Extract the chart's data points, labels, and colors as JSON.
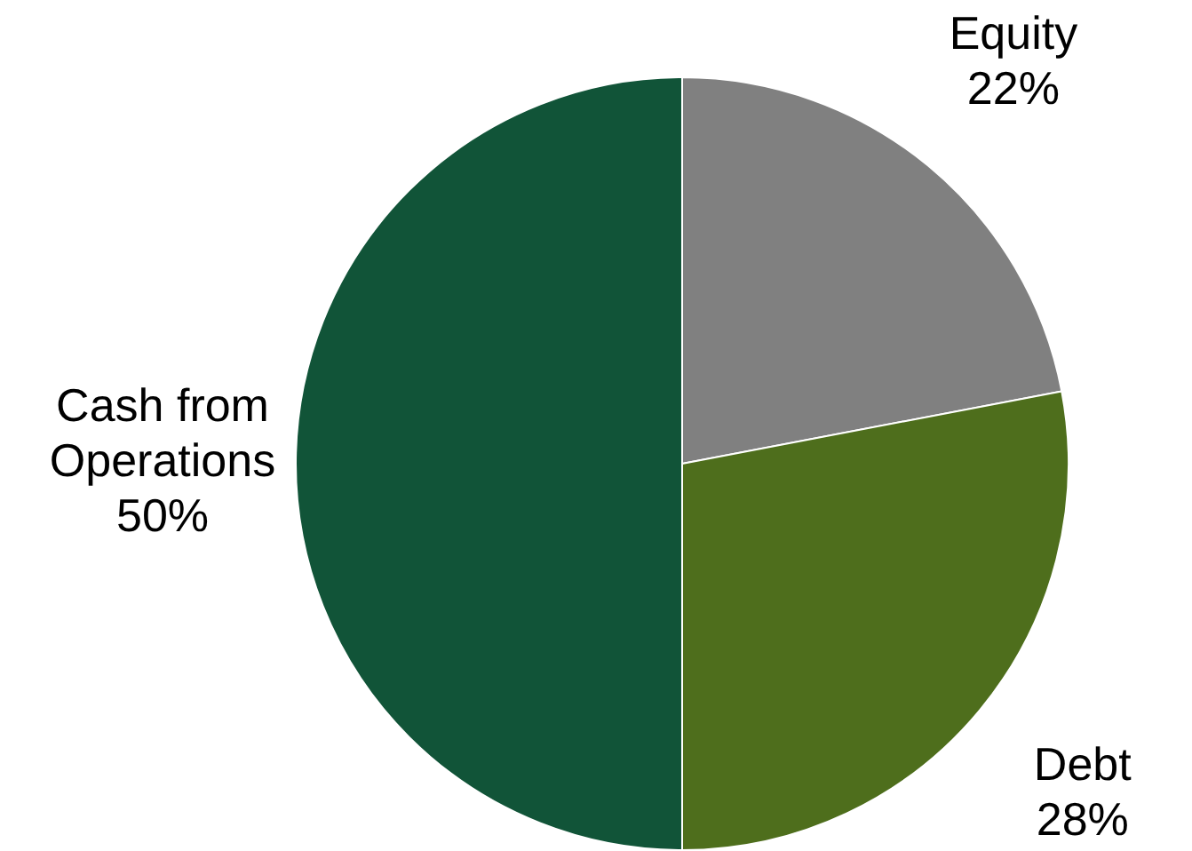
{
  "chart_data": {
    "type": "pie",
    "categories": [
      "Equity",
      "Debt",
      "Cash from Operations"
    ],
    "values": [
      22,
      28,
      50
    ],
    "value_labels": [
      "22%",
      "28%",
      "50%"
    ],
    "colors": [
      "#808080",
      "#4e6e1c",
      "#115438"
    ],
    "legend": false
  }
}
